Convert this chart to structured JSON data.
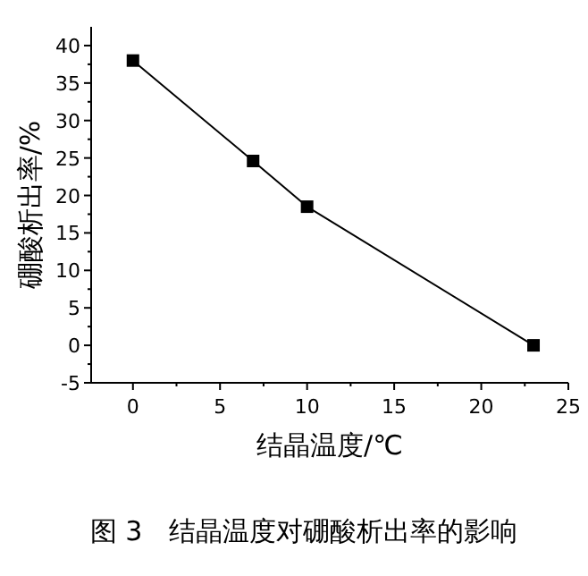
{
  "chart_data": {
    "type": "line",
    "xlabel": "结晶温度/℃",
    "ylabel": "硼酸析出率/%",
    "x": [
      0,
      6.9,
      10,
      23
    ],
    "series": [
      {
        "color": "#000000",
        "values": [
          38,
          24.6,
          18.5,
          0
        ]
      }
    ],
    "xlim": [
      -2.4,
      25
    ],
    "xticks": [
      0,
      5,
      10,
      15,
      20,
      25
    ],
    "ylim": [
      -5,
      42.5
    ],
    "yticks": [
      -5,
      0,
      5,
      10,
      15,
      20,
      25,
      30,
      35,
      40
    ],
    "marker": "square",
    "line_style": "solid",
    "grid": false,
    "annotations": [
      "图 3　结晶温度对硼酸析出率的影响"
    ]
  }
}
